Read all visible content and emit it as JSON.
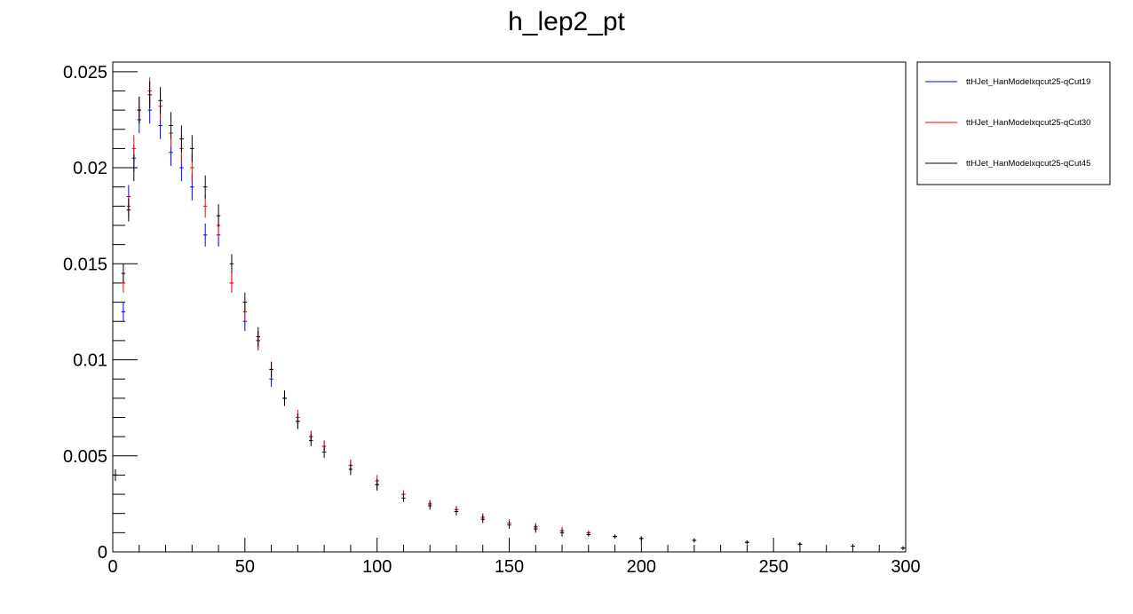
{
  "chart_data": {
    "type": "scatter",
    "title": "h_lep2_pt",
    "xlabel": "",
    "ylabel": "",
    "xlim": [
      0,
      300
    ],
    "ylim": [
      0,
      0.0255
    ],
    "x_ticks": [
      "0",
      "50",
      "100",
      "150",
      "200",
      "250",
      "300"
    ],
    "y_ticks": [
      "0",
      "0.005",
      "0.01",
      "0.015",
      "0.02",
      "0.025"
    ],
    "grid": false,
    "legend_position": "top-right-outside",
    "bin_width": 1.5,
    "series": [
      {
        "name": "ttHJet_HanModelxqcut25-qCut19",
        "color": "#0000ff",
        "x": [
          1,
          4,
          6,
          8,
          10,
          14,
          18,
          22,
          26,
          30,
          35,
          40,
          45,
          50,
          55,
          60,
          65,
          70,
          75,
          80,
          90,
          100,
          110,
          120,
          130,
          140,
          150,
          160,
          170,
          180,
          190,
          200,
          220,
          240,
          260,
          280,
          299
        ],
        "y": [
          0.004,
          0.0125,
          0.0185,
          0.0205,
          0.0225,
          0.023,
          0.0222,
          0.0208,
          0.02,
          0.019,
          0.0165,
          0.0165,
          0.014,
          0.012,
          0.011,
          0.009,
          0.008,
          0.0068,
          0.006,
          0.0055,
          0.0045,
          0.0035,
          0.003,
          0.0025,
          0.0022,
          0.0018,
          0.0015,
          0.0013,
          0.0011,
          0.001,
          0.0008,
          0.0007,
          0.0006,
          0.0005,
          0.0004,
          0.0003,
          0.0002
        ],
        "errors": [
          0.0003,
          0.0005,
          0.0006,
          0.0007,
          0.0007,
          0.0007,
          0.0007,
          0.0007,
          0.0007,
          0.0007,
          0.0006,
          0.0006,
          0.0005,
          0.0005,
          0.0005,
          0.0004,
          0.0004,
          0.0004,
          0.0003,
          0.0003,
          0.0003,
          0.0003,
          0.0002,
          0.0002,
          0.0002,
          0.0002,
          0.0002,
          0.0002,
          0.0002,
          0.0001,
          0.0001,
          0.0001,
          0.0001,
          0.0001,
          0.0001,
          0.0001,
          0.0001
        ]
      },
      {
        "name": "ttHJet_HanModelxqcut25-qCut30",
        "color": "#ff0000",
        "x": [
          1,
          4,
          6,
          8,
          10,
          14,
          18,
          22,
          26,
          30,
          35,
          40,
          45,
          50,
          55,
          60,
          65,
          70,
          75,
          80,
          90,
          100,
          110,
          120,
          130,
          140,
          150,
          160,
          170,
          180,
          190,
          200,
          220,
          240,
          260,
          280,
          299
        ],
        "y": [
          0.004,
          0.014,
          0.018,
          0.021,
          0.023,
          0.024,
          0.0232,
          0.0218,
          0.021,
          0.02,
          0.018,
          0.017,
          0.014,
          0.0125,
          0.011,
          0.0095,
          0.008,
          0.007,
          0.006,
          0.0055,
          0.0045,
          0.0037,
          0.003,
          0.0025,
          0.0022,
          0.0018,
          0.0015,
          0.0013,
          0.0011,
          0.001,
          0.0008,
          0.0007,
          0.0006,
          0.0005,
          0.0004,
          0.0003,
          0.0002
        ],
        "errors": [
          0.0003,
          0.0005,
          0.0006,
          0.0007,
          0.0007,
          0.0007,
          0.0007,
          0.0007,
          0.0007,
          0.0007,
          0.0006,
          0.0006,
          0.0005,
          0.0005,
          0.0005,
          0.0004,
          0.0004,
          0.0004,
          0.0003,
          0.0003,
          0.0003,
          0.0003,
          0.0002,
          0.0002,
          0.0002,
          0.0002,
          0.0002,
          0.0002,
          0.0002,
          0.0001,
          0.0001,
          0.0001,
          0.0001,
          0.0001,
          0.0001,
          0.0001,
          0.0001
        ]
      },
      {
        "name": "ttHJet_HanModelxqcut25-qCut45",
        "color": "#000000",
        "x": [
          1,
          4,
          6,
          8,
          10,
          14,
          18,
          22,
          26,
          30,
          35,
          40,
          45,
          50,
          55,
          60,
          65,
          70,
          75,
          80,
          90,
          100,
          110,
          120,
          130,
          140,
          150,
          160,
          170,
          180,
          190,
          200,
          220,
          240,
          260,
          280,
          299
        ],
        "y": [
          0.004,
          0.0145,
          0.0178,
          0.02,
          0.023,
          0.0238,
          0.0235,
          0.0222,
          0.0215,
          0.021,
          0.019,
          0.0175,
          0.015,
          0.013,
          0.0112,
          0.0095,
          0.008,
          0.0068,
          0.0058,
          0.0052,
          0.0043,
          0.0035,
          0.0028,
          0.0024,
          0.0021,
          0.0017,
          0.0014,
          0.0012,
          0.001,
          0.0009,
          0.0008,
          0.0007,
          0.0006,
          0.0005,
          0.0004,
          0.0003,
          0.0002
        ],
        "errors": [
          0.0003,
          0.0005,
          0.0006,
          0.0007,
          0.0007,
          0.0007,
          0.0007,
          0.0007,
          0.0007,
          0.0007,
          0.0006,
          0.0006,
          0.0005,
          0.0005,
          0.0005,
          0.0004,
          0.0004,
          0.0004,
          0.0003,
          0.0003,
          0.0003,
          0.0003,
          0.0002,
          0.0002,
          0.0002,
          0.0002,
          0.0002,
          0.0002,
          0.0002,
          0.0001,
          0.0001,
          0.0001,
          0.0001,
          0.0001,
          0.0001,
          0.0001,
          0.0001
        ]
      }
    ]
  }
}
